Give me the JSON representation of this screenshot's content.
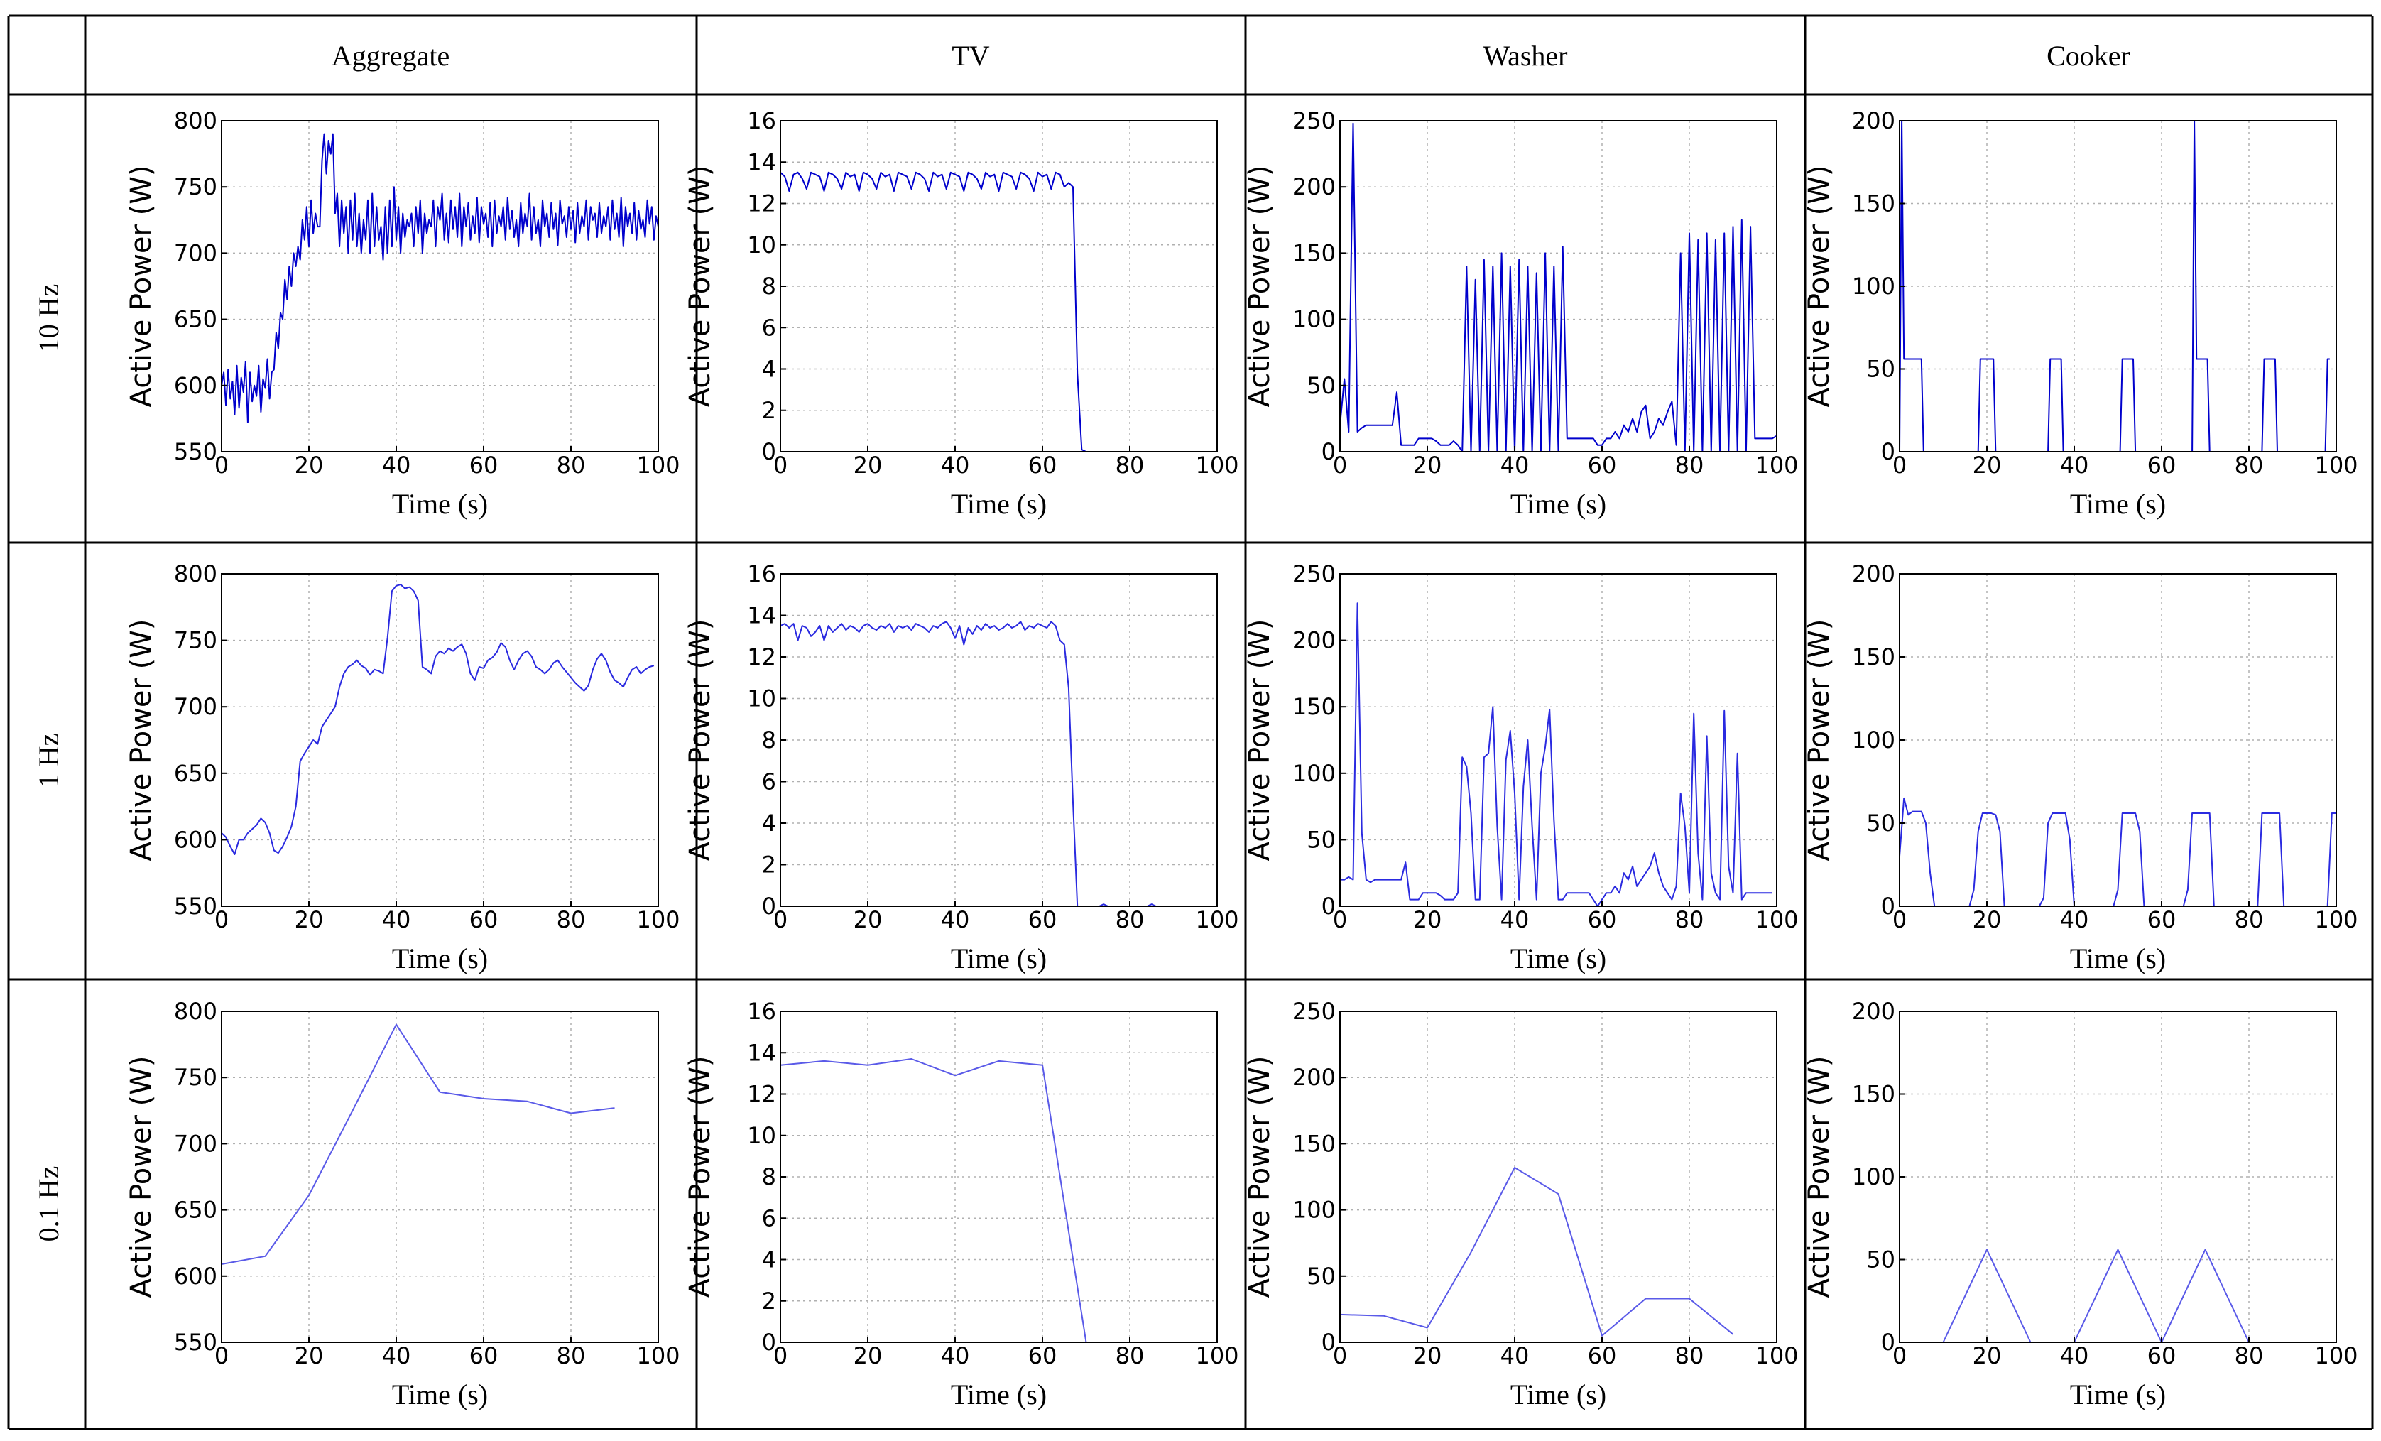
{
  "columns": [
    "Aggregate",
    "TV",
    "Washer",
    "Cooker"
  ],
  "rows": [
    "10 Hz",
    "1 Hz",
    "0.1 Hz"
  ],
  "colors": {
    "line_10hz": "#0000cc",
    "line_1hz": "#2a2ae0",
    "line_01hz": "#5a5ae8"
  },
  "chart_data": [
    {
      "id": "agg-10",
      "type": "line",
      "xlabel": "Time (s)",
      "ylabel": "Active Power (W)",
      "xlim": [
        0,
        100
      ],
      "ylim": [
        550,
        800
      ],
      "xticks": [
        0,
        20,
        40,
        60,
        80,
        100
      ],
      "yticks": [
        550,
        600,
        650,
        700,
        750,
        800
      ],
      "x_step": 0.5,
      "y": [
        600,
        610,
        585,
        612,
        590,
        603,
        578,
        615,
        583,
        606,
        595,
        618,
        572,
        610,
        588,
        600,
        592,
        615,
        580,
        605,
        598,
        620,
        590,
        610,
        612,
        640,
        628,
        655,
        650,
        680,
        665,
        690,
        675,
        700,
        690,
        705,
        695,
        725,
        710,
        735,
        705,
        740,
        715,
        730,
        720,
        720,
        770,
        790,
        760,
        785,
        775,
        790,
        730,
        745,
        705,
        740,
        715,
        735,
        700,
        740,
        710,
        745,
        705,
        730,
        700,
        725,
        710,
        740,
        700,
        745,
        705,
        735,
        710,
        720,
        695,
        735,
        700,
        740,
        705,
        750,
        710,
        735,
        700,
        730,
        712,
        725,
        720,
        730,
        705,
        735,
        715,
        740,
        700,
        730,
        715,
        725,
        720,
        740,
        705,
        735,
        725,
        745,
        710,
        730,
        708,
        740,
        718,
        735,
        712,
        745,
        705,
        735,
        720,
        738,
        710,
        728,
        715,
        742,
        708,
        735,
        722,
        730,
        712,
        738,
        705,
        740,
        715,
        728,
        720,
        735,
        710,
        742,
        718,
        732,
        712,
        725,
        705,
        738,
        715,
        730,
        720,
        745,
        710,
        735,
        715,
        725,
        705,
        740,
        720,
        730,
        712,
        738,
        718,
        730,
        706,
        740,
        722,
        728,
        712,
        735,
        718,
        732,
        708,
        738,
        715,
        728,
        720,
        740,
        710,
        735,
        725,
        730,
        712,
        738,
        715,
        728,
        720,
        735,
        710,
        740,
        718,
        730,
        712,
        742,
        705,
        735,
        720,
        730,
        715,
        738,
        710,
        732,
        718,
        725,
        712,
        740,
        722,
        735,
        710,
        728,
        720
      ]
    },
    {
      "id": "tv-10",
      "type": "line",
      "xlabel": "Time (s)",
      "ylabel": "Active Power (W)",
      "xlim": [
        0,
        100
      ],
      "ylim": [
        0,
        16
      ],
      "xticks": [
        0,
        20,
        40,
        60,
        80,
        100
      ],
      "yticks": [
        0,
        2,
        4,
        6,
        8,
        10,
        12,
        14,
        16
      ],
      "x_step": 1,
      "y": [
        13.5,
        13.3,
        12.6,
        13.4,
        13.5,
        13.2,
        12.7,
        13.5,
        13.4,
        13.3,
        12.6,
        13.5,
        13.4,
        13.2,
        12.7,
        13.5,
        13.3,
        13.4,
        12.6,
        13.5,
        13.4,
        13.2,
        12.7,
        13.5,
        13.3,
        13.4,
        12.6,
        13.5,
        13.4,
        13.3,
        12.7,
        13.5,
        13.4,
        13.2,
        12.6,
        13.5,
        13.3,
        13.4,
        12.7,
        13.5,
        13.4,
        13.3,
        12.6,
        13.5,
        13.4,
        13.2,
        12.7,
        13.5,
        13.3,
        13.4,
        12.6,
        13.5,
        13.4,
        13.3,
        12.7,
        13.5,
        13.4,
        13.2,
        12.6,
        13.5,
        13.3,
        13.4,
        12.7,
        13.5,
        13.4,
        12.8,
        13.0,
        12.8,
        3.8,
        0.1,
        0,
        0,
        0,
        0,
        0,
        0,
        0,
        0,
        0,
        0,
        0,
        0,
        0,
        0,
        0,
        0,
        0,
        0,
        0,
        0,
        0,
        0,
        0,
        0,
        0,
        0,
        0,
        0,
        0,
        0,
        0
      ]
    },
    {
      "id": "wash-10",
      "type": "line",
      "xlabel": "Time (s)",
      "ylabel": "Active Power (W)",
      "xlim": [
        0,
        100
      ],
      "ylim": [
        0,
        250
      ],
      "xticks": [
        0,
        20,
        40,
        60,
        80,
        100
      ],
      "yticks": [
        0,
        50,
        100,
        150,
        200,
        250
      ],
      "x_step": 1,
      "y": [
        20,
        55,
        15,
        248,
        15,
        18,
        20,
        20,
        20,
        20,
        20,
        20,
        20,
        45,
        5,
        5,
        5,
        5,
        10,
        10,
        10,
        10,
        8,
        5,
        5,
        5,
        8,
        5,
        0,
        140,
        0,
        130,
        0,
        145,
        0,
        140,
        0,
        150,
        0,
        140,
        0,
        145,
        0,
        140,
        0,
        135,
        0,
        150,
        0,
        140,
        0,
        155,
        10,
        10,
        10,
        10,
        10,
        10,
        10,
        5,
        5,
        10,
        10,
        15,
        10,
        20,
        15,
        25,
        15,
        30,
        35,
        10,
        15,
        25,
        20,
        30,
        38,
        5,
        150,
        0,
        165,
        0,
        160,
        0,
        165,
        0,
        160,
        0,
        165,
        0,
        170,
        0,
        175,
        0,
        170,
        10,
        10,
        10,
        10,
        10,
        12
      ]
    },
    {
      "id": "cook-10",
      "type": "line",
      "xlabel": "Time (s)",
      "ylabel": "Active Power (W)",
      "xlim": [
        0,
        100
      ],
      "ylim": [
        0,
        200
      ],
      "xticks": [
        0,
        20,
        40,
        60,
        80,
        100
      ],
      "yticks": [
        0,
        50,
        100,
        150,
        200
      ],
      "x_step": 0.5,
      "y": [
        0,
        200,
        56,
        56,
        56,
        56,
        56,
        56,
        56,
        56,
        56,
        0,
        0,
        0,
        0,
        0,
        0,
        0,
        0,
        0,
        0,
        0,
        0,
        0,
        0,
        0,
        0,
        0,
        0,
        0,
        0,
        0,
        0,
        0,
        0,
        0,
        0,
        56,
        56,
        56,
        56,
        56,
        56,
        56,
        0,
        0,
        0,
        0,
        0,
        0,
        0,
        0,
        0,
        0,
        0,
        0,
        0,
        0,
        0,
        0,
        0,
        0,
        0,
        0,
        0,
        0,
        0,
        0,
        0,
        56,
        56,
        56,
        56,
        56,
        56,
        0,
        0,
        0,
        0,
        0,
        0,
        0,
        0,
        0,
        0,
        0,
        0,
        0,
        0,
        0,
        0,
        0,
        0,
        0,
        0,
        0,
        0,
        0,
        0,
        0,
        0,
        0,
        56,
        56,
        56,
        56,
        56,
        56,
        0,
        0,
        0,
        0,
        0,
        0,
        0,
        0,
        0,
        0,
        0,
        0,
        0,
        0,
        0,
        0,
        0,
        0,
        0,
        0,
        0,
        0,
        0,
        0,
        0,
        0,
        0,
        200,
        56,
        56,
        56,
        56,
        56,
        56,
        0,
        0,
        0,
        0,
        0,
        0,
        0,
        0,
        0,
        0,
        0,
        0,
        0,
        0,
        0,
        0,
        0,
        0,
        0,
        0,
        0,
        0,
        0,
        0,
        0,
        56,
        56,
        56,
        56,
        56,
        56,
        0,
        0,
        0,
        0,
        0,
        0,
        0,
        0,
        0,
        0,
        0,
        0,
        0,
        0,
        0,
        0,
        0,
        0,
        0,
        0,
        0,
        0,
        0,
        56,
        56
      ]
    },
    {
      "id": "agg-1",
      "type": "line",
      "xlabel": "Time (s)",
      "ylabel": "Active Power (W)",
      "xlim": [
        0,
        100
      ],
      "ylim": [
        550,
        800
      ],
      "xticks": [
        0,
        20,
        40,
        60,
        80,
        100
      ],
      "yticks": [
        550,
        600,
        650,
        700,
        750,
        800
      ],
      "x_step": 1,
      "y": [
        605,
        602,
        595,
        589,
        600,
        600,
        605,
        608,
        611,
        616,
        613,
        605,
        592,
        590,
        595,
        602,
        610,
        625,
        659,
        665,
        670,
        675,
        672,
        685,
        690,
        695,
        700,
        715,
        725,
        730,
        732,
        735,
        731,
        729,
        724,
        728,
        727,
        725,
        752,
        787,
        791,
        792,
        789,
        790,
        787,
        780,
        730,
        728,
        725,
        738,
        742,
        740,
        744,
        742,
        745,
        747,
        740,
        725,
        720,
        730,
        729,
        735,
        737,
        741,
        748,
        745,
        735,
        728,
        735,
        740,
        742,
        738,
        730,
        728,
        725,
        728,
        733,
        735,
        730,
        726,
        722,
        718,
        715,
        712,
        716,
        728,
        736,
        740,
        735,
        726,
        720,
        718,
        715,
        722,
        728,
        730,
        725,
        728,
        730,
        731
      ]
    },
    {
      "id": "tv-1",
      "type": "line",
      "xlabel": "Time (s)",
      "ylabel": "Active Power (W)",
      "xlim": [
        0,
        100
      ],
      "ylim": [
        0,
        16
      ],
      "xticks": [
        0,
        20,
        40,
        60,
        80,
        100
      ],
      "yticks": [
        0,
        2,
        4,
        6,
        8,
        10,
        12,
        14,
        16
      ],
      "x_step": 1,
      "y": [
        13.5,
        13.6,
        13.4,
        13.6,
        12.8,
        13.5,
        13.4,
        13.0,
        13.2,
        13.5,
        12.8,
        13.5,
        13.2,
        13.4,
        13.6,
        13.3,
        13.5,
        13.4,
        13.2,
        13.5,
        13.6,
        13.4,
        13.3,
        13.5,
        13.4,
        13.6,
        13.2,
        13.5,
        13.4,
        13.5,
        13.3,
        13.6,
        13.5,
        13.4,
        13.2,
        13.5,
        13.4,
        13.6,
        13.7,
        13.4,
        12.9,
        13.5,
        12.6,
        13.4,
        13.1,
        13.5,
        13.3,
        13.6,
        13.4,
        13.5,
        13.3,
        13.4,
        13.6,
        13.4,
        13.5,
        13.7,
        13.3,
        13.5,
        13.4,
        13.6,
        13.5,
        13.4,
        13.7,
        13.5,
        12.8,
        12.6,
        10.5,
        5,
        0,
        0,
        0,
        0,
        0,
        0,
        0.1,
        0,
        0,
        0,
        0,
        0,
        0,
        0,
        0,
        0,
        0,
        0.1,
        0,
        0,
        0,
        0,
        0,
        0,
        0,
        0,
        0,
        0,
        0,
        0,
        0,
        0
      ]
    },
    {
      "id": "wash-1",
      "type": "line",
      "xlabel": "Time (s)",
      "ylabel": "Active Power (W)",
      "xlim": [
        0,
        100
      ],
      "ylim": [
        0,
        250
      ],
      "xticks": [
        0,
        20,
        40,
        60,
        80,
        100
      ],
      "yticks": [
        0,
        50,
        100,
        150,
        200,
        250
      ],
      "x_step": 1,
      "y": [
        20,
        20,
        22,
        20,
        228,
        55,
        20,
        18,
        20,
        20,
        20,
        20,
        20,
        20,
        20,
        33,
        5,
        5,
        5,
        10,
        10,
        10,
        10,
        8,
        5,
        5,
        5,
        10,
        112,
        105,
        70,
        5,
        5,
        112,
        115,
        150,
        60,
        5,
        110,
        132,
        85,
        5,
        90,
        125,
        60,
        5,
        100,
        120,
        148,
        65,
        5,
        5,
        10,
        10,
        10,
        10,
        10,
        10,
        5,
        0,
        5,
        10,
        10,
        15,
        10,
        25,
        20,
        30,
        15,
        20,
        25,
        30,
        40,
        25,
        15,
        10,
        5,
        15,
        85,
        60,
        10,
        145,
        40,
        5,
        128,
        25,
        10,
        5,
        147,
        30,
        10,
        115,
        5,
        10,
        10,
        10,
        10,
        10,
        10,
        10
      ]
    },
    {
      "id": "cook-1",
      "type": "line",
      "xlabel": "Time (s)",
      "ylabel": "Active Power (W)",
      "xlim": [
        0,
        100
      ],
      "ylim": [
        0,
        200
      ],
      "xticks": [
        0,
        20,
        40,
        60,
        80,
        100
      ],
      "yticks": [
        0,
        50,
        100,
        150,
        200
      ],
      "x_step": 1,
      "y": [
        30,
        65,
        55,
        57,
        57,
        57,
        50,
        20,
        0,
        0,
        0,
        0,
        0,
        0,
        0,
        0,
        0,
        10,
        45,
        56,
        56,
        56,
        55,
        45,
        0,
        0,
        0,
        0,
        0,
        0,
        0,
        0,
        0,
        5,
        50,
        56,
        56,
        56,
        56,
        40,
        0,
        0,
        0,
        0,
        0,
        0,
        0,
        0,
        0,
        0,
        10,
        56,
        56,
        56,
        56,
        45,
        0,
        0,
        0,
        0,
        0,
        0,
        0,
        0,
        0,
        0,
        10,
        56,
        56,
        56,
        56,
        56,
        0,
        0,
        0,
        0,
        0,
        0,
        0,
        0,
        0,
        0,
        0,
        56,
        56,
        56,
        56,
        56,
        0,
        0,
        0,
        0,
        0,
        0,
        0,
        0,
        0,
        0,
        0,
        56,
        56
      ]
    },
    {
      "id": "agg-01",
      "type": "line",
      "xlabel": "Time (s)",
      "ylabel": "Active Power (W)",
      "xlim": [
        0,
        100
      ],
      "ylim": [
        550,
        800
      ],
      "xticks": [
        0,
        20,
        40,
        60,
        80,
        100
      ],
      "yticks": [
        550,
        600,
        650,
        700,
        750,
        800
      ],
      "x": [
        0,
        10,
        20,
        30,
        40,
        50,
        60,
        70,
        80,
        90
      ],
      "y": [
        609,
        615,
        661,
        725,
        790,
        739,
        734,
        732,
        723,
        727
      ]
    },
    {
      "id": "tv-01",
      "type": "line",
      "xlabel": "Time (s)",
      "ylabel": "Active Power (W)",
      "xlim": [
        0,
        100
      ],
      "ylim": [
        0,
        16
      ],
      "xticks": [
        0,
        20,
        40,
        60,
        80,
        100
      ],
      "yticks": [
        0,
        2,
        4,
        6,
        8,
        10,
        12,
        14,
        16
      ],
      "x": [
        0,
        10,
        20,
        30,
        40,
        50,
        60,
        70,
        80,
        90
      ],
      "y": [
        13.4,
        13.6,
        13.4,
        13.7,
        12.9,
        13.6,
        13.4,
        0,
        0,
        0
      ]
    },
    {
      "id": "wash-01",
      "type": "line",
      "xlabel": "Time (s)",
      "ylabel": "Active Power (W)",
      "xlim": [
        0,
        100
      ],
      "ylim": [
        0,
        250
      ],
      "xticks": [
        0,
        20,
        40,
        60,
        80,
        100
      ],
      "yticks": [
        0,
        50,
        100,
        150,
        200,
        250
      ],
      "x": [
        0,
        10,
        20,
        30,
        40,
        50,
        60,
        70,
        80,
        90
      ],
      "y": [
        21,
        20,
        11,
        68,
        132,
        112,
        5,
        33,
        33,
        6
      ]
    },
    {
      "id": "cook-01",
      "type": "line",
      "xlabel": "Time (s)",
      "ylabel": "Active Power (W)",
      "xlim": [
        0,
        100
      ],
      "ylim": [
        0,
        200
      ],
      "xticks": [
        0,
        20,
        40,
        60,
        80,
        100
      ],
      "yticks": [
        0,
        50,
        100,
        150,
        200
      ],
      "x": [
        0,
        10,
        20,
        30,
        40,
        50,
        60,
        70,
        80,
        90
      ],
      "y": [
        0,
        0,
        56,
        0,
        0,
        56,
        0,
        56,
        0,
        0
      ]
    }
  ]
}
